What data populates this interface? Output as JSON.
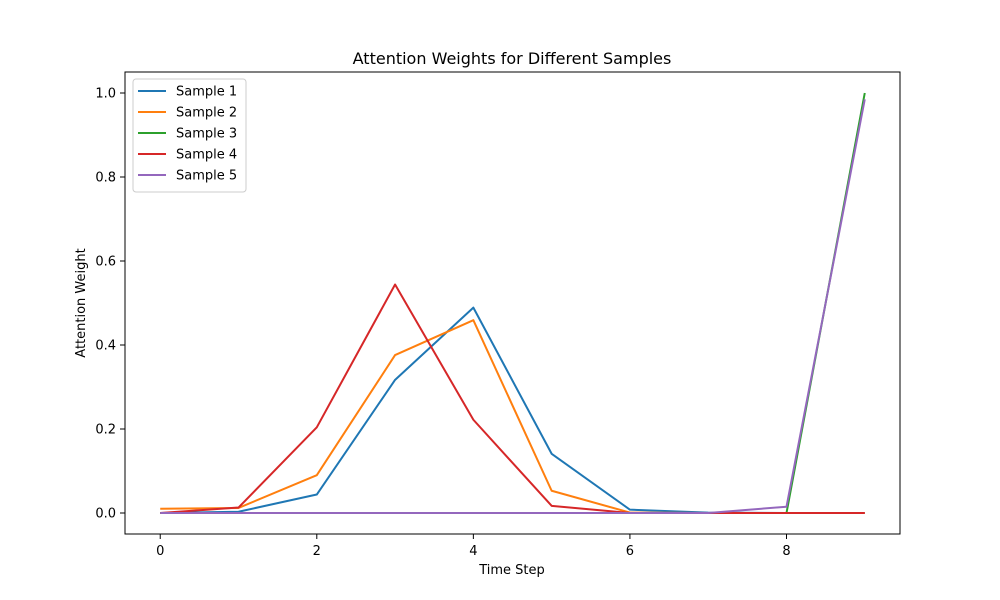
{
  "chart_data": {
    "type": "line",
    "title": "Attention Weights for Different Samples",
    "xlabel": "Time Step",
    "ylabel": "Attention Weight",
    "x": [
      0,
      1,
      2,
      3,
      4,
      5,
      6,
      7,
      8,
      9
    ],
    "xlim": [
      -0.45,
      9.45
    ],
    "ylim": [
      -0.05,
      1.05
    ],
    "xticks": [
      0,
      2,
      4,
      6,
      8
    ],
    "xtick_labels": [
      "0",
      "2",
      "4",
      "6",
      "8"
    ],
    "yticks": [
      0.0,
      0.2,
      0.4,
      0.6,
      0.8,
      1.0
    ],
    "ytick_labels": [
      "0.0",
      "0.2",
      "0.4",
      "0.6",
      "0.8",
      "1.0"
    ],
    "grid": false,
    "legend_position": "upper-left",
    "series": [
      {
        "name": "Sample 1",
        "color": "#1f77b4",
        "values": [
          0.0,
          0.003,
          0.044,
          0.317,
          0.489,
          0.141,
          0.008,
          0.001,
          0.0,
          0.0
        ]
      },
      {
        "name": "Sample 2",
        "color": "#ff7f0e",
        "values": [
          0.01,
          0.012,
          0.09,
          0.376,
          0.459,
          0.053,
          0.001,
          0.0,
          0.0,
          0.0
        ]
      },
      {
        "name": "Sample 3",
        "color": "#2ca02c",
        "values": [
          0.0,
          0.0,
          0.0,
          0.0,
          0.0,
          0.0,
          0.0,
          0.0,
          0.0,
          1.0
        ]
      },
      {
        "name": "Sample 4",
        "color": "#d62728",
        "values": [
          0.0,
          0.013,
          0.204,
          0.544,
          0.222,
          0.017,
          0.0,
          0.0,
          0.0,
          0.0
        ]
      },
      {
        "name": "Sample 5",
        "color": "#9467bd",
        "values": [
          0.0,
          0.0,
          0.0,
          0.0,
          0.0,
          0.0,
          0.0,
          0.0,
          0.015,
          0.985
        ]
      }
    ]
  }
}
